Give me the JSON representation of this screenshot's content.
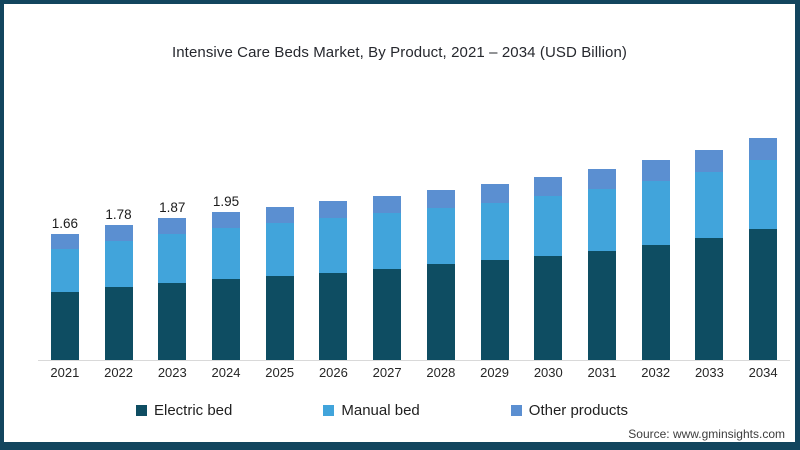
{
  "header": {
    "title": "Intensive Care Beds Market, By Product, 2021 – 2034 (USD Billion)"
  },
  "source": {
    "label": "Source: www.gminsights.com"
  },
  "colors": {
    "frame_border": "#12455e",
    "electric_bed": "#0e4d62",
    "manual_bed": "#41a4db",
    "other_products": "#5b8fd1",
    "axis_line": "#d9d9d9"
  },
  "legend": {
    "items": [
      {
        "label": "Electric bed",
        "color": "#0e4d62"
      },
      {
        "label": "Manual bed",
        "color": "#41a4db"
      },
      {
        "label": "Other products",
        "color": "#5b8fd1"
      }
    ]
  },
  "chart_data": {
    "type": "bar",
    "stacked": true,
    "title": "Intensive Care Beds Market, By Product, 2021 – 2034 (USD Billion)",
    "unit": "USD Billion",
    "xlabel": "",
    "ylabel": "",
    "value_axis_hidden": true,
    "grid": false,
    "legend_position": "bottom",
    "categories": [
      "2021",
      "2022",
      "2023",
      "2024",
      "2025",
      "2026",
      "2027",
      "2028",
      "2029",
      "2030",
      "2031",
      "2032",
      "2033",
      "2034"
    ],
    "series": [
      {
        "name": "Electric bed",
        "color": "#0e4d62",
        "values": [
          0.89,
          0.96,
          1.02,
          1.07,
          1.11,
          1.15,
          1.2,
          1.26,
          1.31,
          1.37,
          1.44,
          1.52,
          1.61,
          1.72
        ]
      },
      {
        "name": "Manual bed",
        "color": "#41a4db",
        "values": [
          0.57,
          0.61,
          0.64,
          0.67,
          0.69,
          0.72,
          0.73,
          0.74,
          0.76,
          0.79,
          0.81,
          0.84,
          0.87,
          0.91
        ]
      },
      {
        "name": "Other products",
        "color": "#5b8fd1",
        "values": [
          0.2,
          0.21,
          0.21,
          0.21,
          0.22,
          0.22,
          0.23,
          0.24,
          0.25,
          0.25,
          0.26,
          0.27,
          0.29,
          0.29
        ]
      }
    ],
    "totals": [
      1.66,
      1.78,
      1.87,
      1.95,
      2.02,
      2.09,
      2.16,
      2.24,
      2.32,
      2.41,
      2.51,
      2.63,
      2.77,
      2.92
    ],
    "visible_total_labels": [
      "1.66",
      "1.78",
      "1.87",
      "1.95",
      "",
      "",
      "",
      "",
      "",
      "",
      "",
      "",
      "",
      ""
    ]
  }
}
